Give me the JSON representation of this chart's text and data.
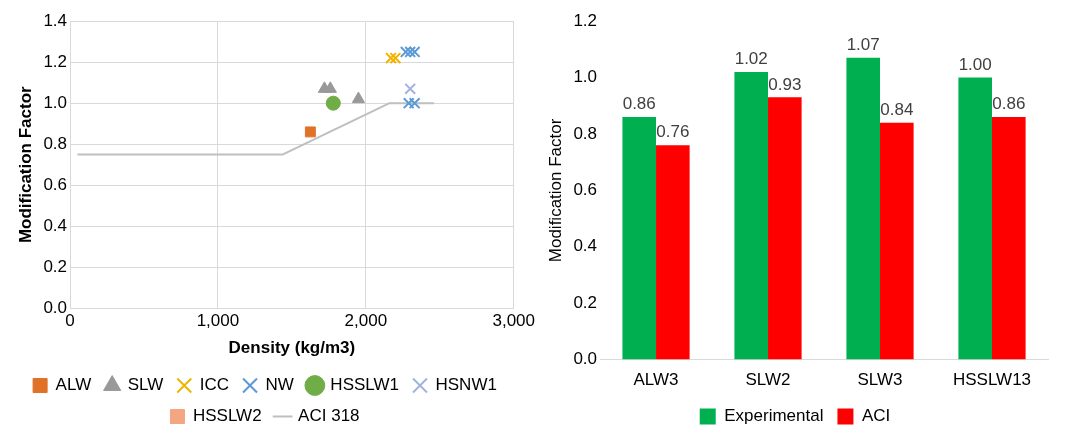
{
  "chart_data": [
    {
      "type": "scatter",
      "xlabel": "Density (kg/m3)",
      "ylabel": "Modification Factor",
      "xlim": [
        0,
        3000
      ],
      "xticks": [
        {
          "value": 0,
          "label": "0"
        },
        {
          "value": 1000,
          "label": "1,000"
        },
        {
          "value": 2000,
          "label": "2,000"
        },
        {
          "value": 3000,
          "label": "3,000"
        }
      ],
      "ylim": [
        0,
        1.4
      ],
      "yticks": [
        {
          "value": 0,
          "label": "0.0"
        },
        {
          "value": 0.2,
          "label": "0.2"
        },
        {
          "value": 0.4,
          "label": "0.4"
        },
        {
          "value": 0.6,
          "label": "0.6"
        },
        {
          "value": 0.8,
          "label": "0.8"
        },
        {
          "value": 1,
          "label": "1.0"
        },
        {
          "value": 1.2,
          "label": "1.2"
        },
        {
          "value": 1.4,
          "label": "1.4"
        }
      ],
      "grid": true,
      "legend": "bottom",
      "series": [
        {
          "name": "ALW",
          "color": "#e07128",
          "marker": "square",
          "x": [
            1625
          ],
          "values": [
            0.86
          ]
        },
        {
          "name": "SLW",
          "color": "#999999",
          "marker": "triangle",
          "x": [
            1720,
            1760,
            1950
          ],
          "values": [
            1.07,
            1.07,
            1.02
          ]
        },
        {
          "name": "ICC",
          "color": "#f0b400",
          "marker": "cross",
          "x": [
            2170,
            2200
          ],
          "values": [
            1.22,
            1.22
          ]
        },
        {
          "name": "NW",
          "color": "#5b9bd5",
          "marker": "cross",
          "x": [
            2270,
            2300,
            2330,
            2290,
            2330
          ],
          "values": [
            1.25,
            1.25,
            1.25,
            1.0,
            1.0
          ]
        },
        {
          "name": "HSSLW1",
          "color": "#70ad47",
          "marker": "circle",
          "x": [
            1780
          ],
          "values": [
            1.0
          ]
        },
        {
          "name": "HSNW1",
          "color": "#9fb2e0",
          "marker": "cross",
          "x": [
            2300
          ],
          "values": [
            1.07
          ]
        },
        {
          "name": "HSSLW2",
          "color": "#f4a582",
          "marker": "square"
        },
        {
          "name": "ACI 318",
          "color": "#bfbfbf",
          "type": "line",
          "marker": "none",
          "x": [
            50,
            1440,
            2160,
            2460
          ],
          "values": [
            0.75,
            0.75,
            1.0,
            1.0
          ]
        }
      ]
    },
    {
      "type": "bar",
      "ylabel": "Modification Factor",
      "categories": [
        "ALW3",
        "SLW2",
        "SLW3",
        "HSSLW13"
      ],
      "ylim": [
        0,
        1.2
      ],
      "yticks": [
        {
          "value": 0,
          "label": "0.0"
        },
        {
          "value": 0.2,
          "label": "0.2"
        },
        {
          "value": 0.4,
          "label": "0.4"
        },
        {
          "value": 0.6,
          "label": "0.6"
        },
        {
          "value": 0.8,
          "label": "0.8"
        },
        {
          "value": 1,
          "label": "1.0"
        },
        {
          "value": 1.2,
          "label": "1.2"
        }
      ],
      "legend": "bottom",
      "series": [
        {
          "name": "Experimental",
          "color": "#00b050",
          "values": [
            0.86,
            1.02,
            1.07,
            1.0
          ],
          "value_labels": [
            "0.86",
            "1.02",
            "1.07",
            "1.00"
          ]
        },
        {
          "name": "ACI",
          "color": "#ff0000",
          "values": [
            0.76,
            0.93,
            0.84,
            0.86
          ],
          "value_labels": [
            "0.76",
            "0.93",
            "0.84",
            "0.86"
          ]
        }
      ]
    }
  ]
}
